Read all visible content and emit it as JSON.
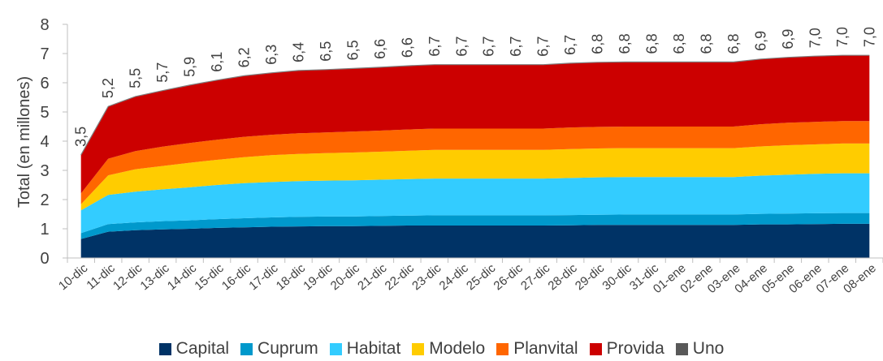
{
  "chart_data": {
    "type": "area",
    "stacked": true,
    "ylabel": "Total (en millones)",
    "xlabel": "",
    "ylim": [
      0,
      8
    ],
    "yticks": [
      "0",
      "1",
      "2",
      "3",
      "4",
      "5",
      "6",
      "7",
      "8"
    ],
    "grid": false,
    "legend": "bottom",
    "categories": [
      "10-dic",
      "11-dic",
      "12-dic",
      "13-dic",
      "14-dic",
      "15-dic",
      "16-dic",
      "17-dic",
      "18-dic",
      "19-dic",
      "20-dic",
      "21-dic",
      "22-dic",
      "23-dic",
      "24-dic",
      "25-dic",
      "26-dic",
      "27-dic",
      "28-dic",
      "29-dic",
      "30-dic",
      "31-dic",
      "01-ene",
      "02-ene",
      "03-ene",
      "04-ene",
      "05-ene",
      "06-ene",
      "07-ene",
      "08-ene"
    ],
    "total_labels": [
      "3,5",
      "5,2",
      "5,5",
      "5,7",
      "5,9",
      "6,1",
      "6,2",
      "6,3",
      "6,4",
      "6,5",
      "6,5",
      "6,6",
      "6,6",
      "6,7",
      "6,7",
      "6,7",
      "6,7",
      "6,7",
      "6,7",
      "6,8",
      "6,8",
      "6,8",
      "6,8",
      "6,8",
      "6,8",
      "6,9",
      "6,9",
      "7,0",
      "7,0",
      "7,0"
    ],
    "series": [
      {
        "name": "Capital",
        "color": "#003366",
        "values": [
          0.65,
          0.9,
          0.95,
          0.98,
          1.0,
          1.03,
          1.05,
          1.07,
          1.08,
          1.09,
          1.09,
          1.1,
          1.11,
          1.11,
          1.11,
          1.11,
          1.11,
          1.11,
          1.12,
          1.13,
          1.13,
          1.13,
          1.13,
          1.13,
          1.13,
          1.15,
          1.15,
          1.16,
          1.17,
          1.17
        ]
      },
      {
        "name": "Cuprum",
        "color": "#0099CC",
        "values": [
          0.2,
          0.26,
          0.27,
          0.28,
          0.29,
          0.3,
          0.31,
          0.32,
          0.33,
          0.33,
          0.33,
          0.34,
          0.34,
          0.35,
          0.35,
          0.35,
          0.35,
          0.35,
          0.35,
          0.35,
          0.36,
          0.36,
          0.36,
          0.36,
          0.36,
          0.36,
          0.37,
          0.37,
          0.37,
          0.37
        ]
      },
      {
        "name": "Habitat",
        "color": "#33CCFF",
        "values": [
          0.78,
          1.0,
          1.05,
          1.09,
          1.13,
          1.17,
          1.2,
          1.21,
          1.22,
          1.23,
          1.24,
          1.24,
          1.25,
          1.26,
          1.26,
          1.26,
          1.26,
          1.26,
          1.27,
          1.28,
          1.28,
          1.28,
          1.28,
          1.28,
          1.28,
          1.31,
          1.33,
          1.35,
          1.36,
          1.36
        ]
      },
      {
        "name": "Modelo",
        "color": "#FFCC00",
        "values": [
          0.21,
          0.67,
          0.77,
          0.8,
          0.84,
          0.86,
          0.89,
          0.92,
          0.93,
          0.94,
          0.95,
          0.96,
          0.97,
          0.98,
          0.98,
          0.98,
          0.98,
          0.98,
          0.99,
          0.99,
          0.99,
          0.99,
          0.99,
          0.99,
          0.99,
          1.0,
          1.01,
          1.01,
          1.02,
          1.02
        ]
      },
      {
        "name": "Planvital",
        "color": "#FF6600",
        "values": [
          0.37,
          0.57,
          0.62,
          0.66,
          0.68,
          0.69,
          0.7,
          0.7,
          0.71,
          0.71,
          0.72,
          0.72,
          0.73,
          0.73,
          0.73,
          0.73,
          0.73,
          0.73,
          0.74,
          0.74,
          0.74,
          0.74,
          0.74,
          0.74,
          0.74,
          0.76,
          0.77,
          0.77,
          0.77,
          0.77
        ]
      },
      {
        "name": "Provida",
        "color": "#CC0000",
        "values": [
          1.32,
          1.79,
          1.87,
          1.92,
          1.98,
          2.04,
          2.09,
          2.12,
          2.15,
          2.15,
          2.16,
          2.17,
          2.18,
          2.19,
          2.19,
          2.19,
          2.19,
          2.19,
          2.2,
          2.21,
          2.21,
          2.21,
          2.21,
          2.21,
          2.21,
          2.23,
          2.24,
          2.25,
          2.25,
          2.25
        ]
      },
      {
        "name": "Uno",
        "color": "#595959",
        "values": [
          0,
          0,
          0,
          0,
          0,
          0,
          0,
          0,
          0,
          0,
          0,
          0,
          0,
          0,
          0,
          0,
          0,
          0,
          0,
          0,
          0,
          0,
          0,
          0,
          0,
          0,
          0,
          0,
          0,
          0
        ]
      }
    ]
  }
}
